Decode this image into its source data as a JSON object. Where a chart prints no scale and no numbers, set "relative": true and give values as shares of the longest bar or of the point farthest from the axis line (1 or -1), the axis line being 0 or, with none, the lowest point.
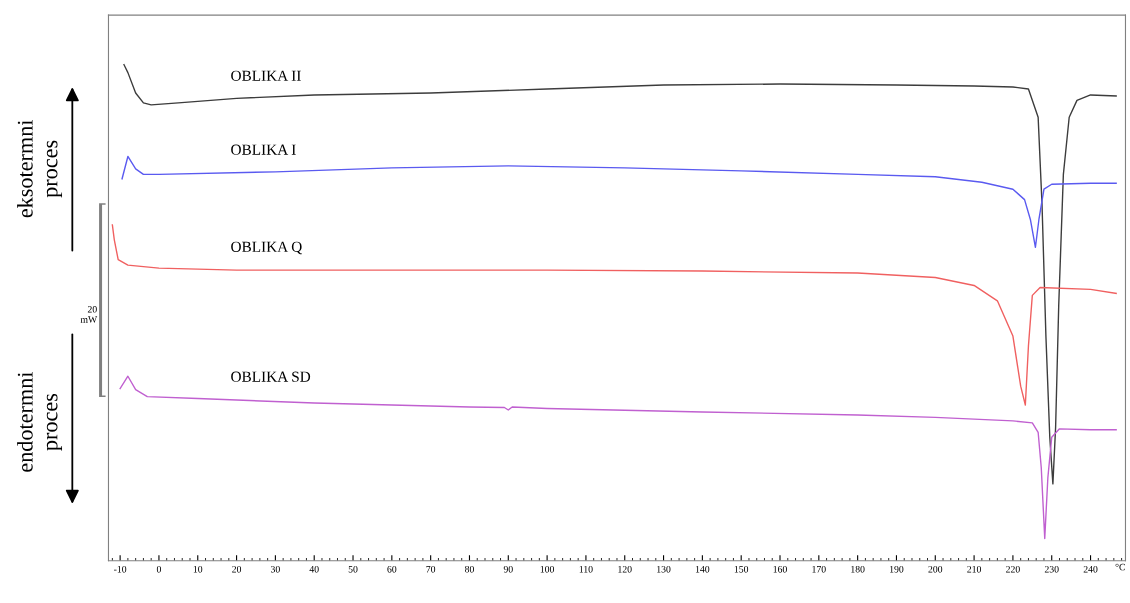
{
  "chart_data": {
    "type": "line",
    "relative": true,
    "xlabel": "°C",
    "xlim": [
      -13,
      249
    ],
    "xticks": [
      -10,
      0,
      10,
      20,
      30,
      40,
      50,
      60,
      70,
      80,
      90,
      100,
      110,
      120,
      130,
      140,
      150,
      160,
      170,
      180,
      190,
      200,
      210,
      220,
      230,
      240
    ],
    "grid": false,
    "legend": false,
    "tick_labels": "x",
    "marker": "none",
    "line_style": "solid",
    "annotations": [
      "eksotermni proces",
      "endotermni proces",
      "20 mW"
    ],
    "series": [
      {
        "name": "OBLIKA II",
        "color": "#3c3c3c",
        "x": [
          -9,
          -8,
          -6,
          -4,
          -2,
          5,
          20,
          40,
          70,
          100,
          130,
          160,
          190,
          210,
          220,
          224,
          226.5,
          227.5,
          228.5,
          229.5,
          230.3,
          231,
          231.8,
          233,
          234.5,
          236.5,
          240,
          246.6
        ],
        "values": [
          1.0,
          0.984,
          0.943,
          0.923,
          0.919,
          0.923,
          0.932,
          0.939,
          0.943,
          0.951,
          0.959,
          0.961,
          0.959,
          0.957,
          0.955,
          0.951,
          0.894,
          0.718,
          0.453,
          0.249,
          0.155,
          0.269,
          0.514,
          0.779,
          0.894,
          0.928,
          0.939,
          0.937
        ]
      },
      {
        "name": "OBLIKA I",
        "color": "#5a5af0",
        "x": [
          -9.5,
          -8,
          -6,
          -4,
          0,
          30,
          60,
          90,
          120,
          150,
          180,
          200,
          212,
          220,
          223,
          224.5,
          225.8,
          226.7,
          228,
          230,
          240,
          246.6
        ],
        "values": [
          0.77,
          0.815,
          0.79,
          0.779,
          0.779,
          0.784,
          0.792,
          0.796,
          0.792,
          0.786,
          0.779,
          0.774,
          0.763,
          0.749,
          0.728,
          0.688,
          0.632,
          0.688,
          0.749,
          0.759,
          0.761,
          0.761
        ]
      },
      {
        "name": "OBLIKA Q",
        "color": "#f06060",
        "x": [
          -12,
          -11.5,
          -10.5,
          -8,
          0,
          20,
          60,
          100,
          140,
          180,
          200,
          210,
          216,
          220,
          222,
          223.2,
          224,
          225,
          227,
          240,
          246.6
        ],
        "values": [
          0.677,
          0.647,
          0.607,
          0.596,
          0.59,
          0.586,
          0.586,
          0.586,
          0.584,
          0.58,
          0.571,
          0.555,
          0.524,
          0.453,
          0.352,
          0.314,
          0.433,
          0.535,
          0.551,
          0.547,
          0.539
        ]
      },
      {
        "name": "OBLIKA SD",
        "color": "#c060d0",
        "x": [
          -10,
          -8,
          -6,
          -3,
          10,
          40,
          60,
          80,
          89,
          90,
          91,
          100,
          140,
          180,
          200,
          220,
          225,
          226.5,
          227.3,
          228.2,
          229,
          230,
          232,
          240,
          246.6
        ],
        "values": [
          0.347,
          0.372,
          0.345,
          0.331,
          0.327,
          0.318,
          0.314,
          0.31,
          0.309,
          0.304,
          0.31,
          0.307,
          0.3,
          0.294,
          0.289,
          0.282,
          0.278,
          0.259,
          0.188,
          0.045,
          0.167,
          0.249,
          0.266,
          0.264,
          0.264
        ]
      }
    ]
  }
}
